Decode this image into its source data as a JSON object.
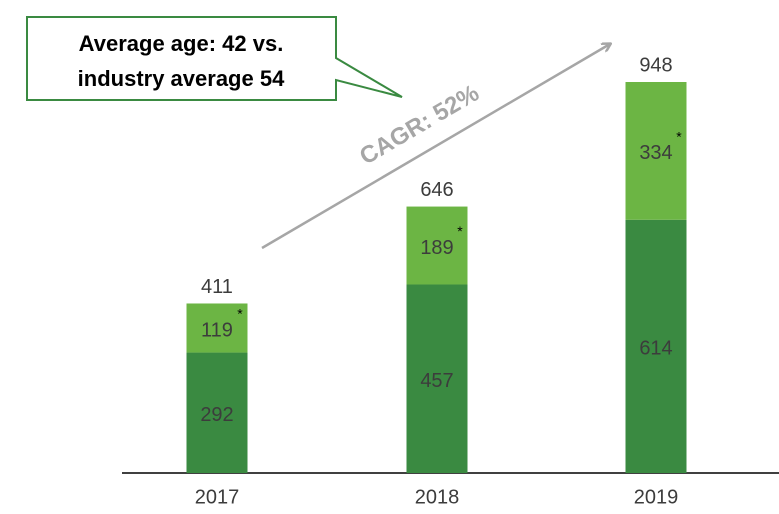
{
  "chart_data": {
    "type": "stacked_bar",
    "categories": [
      "2017",
      "2018",
      "2019"
    ],
    "series": [
      {
        "color": "#3a8a41",
        "values": [
          292,
          457,
          614
        ]
      },
      {
        "color": "#6cb544",
        "values": [
          119,
          189,
          334
        ],
        "footnote_mark": "*"
      }
    ],
    "totals": [
      411,
      646,
      948
    ],
    "callout": [
      "Average age: 42 vs.",
      "industry average 54"
    ],
    "trend_label": "CAGR: 52%"
  }
}
